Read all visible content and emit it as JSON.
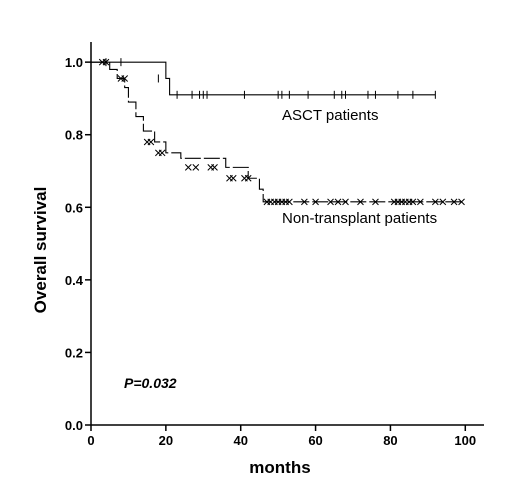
{
  "chart_data": {
    "type": "line",
    "xlabel": "months",
    "ylabel": "Overall survival",
    "xlim": [
      0,
      105
    ],
    "ylim": [
      0,
      1.05
    ],
    "x_ticks": [
      0,
      20,
      40,
      60,
      80,
      100
    ],
    "x_tick_labels": [
      "0",
      "20",
      "40",
      "60",
      "80",
      "100"
    ],
    "y_ticks": [
      0,
      0.2,
      0.4,
      0.6,
      0.8,
      1.0
    ],
    "y_tick_labels": [
      "0.0",
      "0.2",
      "0.4",
      "0.6",
      "0.8",
      "1.0"
    ],
    "grid": false,
    "annotation": "P=0.032",
    "series": [
      {
        "name": "ASCT patients",
        "line_style": "solid",
        "censor_marker": "tick",
        "step_x": [
          0,
          18,
          20,
          21,
          92
        ],
        "step_y": [
          1.0,
          1.0,
          0.955,
          0.91,
          0.91
        ],
        "censored_x": [
          4,
          8,
          18,
          23,
          27,
          29,
          30,
          31,
          41,
          50,
          51,
          53,
          58,
          65,
          67,
          68,
          74,
          76,
          82,
          86,
          92
        ],
        "censored_y": [
          1.0,
          1.0,
          0.955,
          0.91,
          0.91,
          0.91,
          0.91,
          0.91,
          0.91,
          0.91,
          0.91,
          0.91,
          0.91,
          0.91,
          0.91,
          0.91,
          0.91,
          0.91,
          0.91,
          0.91,
          0.91
        ]
      },
      {
        "name": "Non-transplant patients",
        "line_style": "dashed",
        "censor_marker": "x",
        "step_x": [
          0,
          5,
          7,
          9,
          10,
          12,
          14,
          17,
          20,
          24,
          36,
          42,
          45,
          46,
          99
        ],
        "step_y": [
          1.0,
          0.98,
          0.955,
          0.93,
          0.89,
          0.85,
          0.81,
          0.78,
          0.75,
          0.735,
          0.71,
          0.68,
          0.65,
          0.615,
          0.615
        ],
        "censored_x": [
          3,
          4,
          8,
          9,
          15,
          16,
          18,
          19,
          26,
          28,
          32,
          33,
          37,
          38,
          41,
          42,
          47,
          48,
          49,
          50,
          51,
          52,
          53,
          57,
          60,
          64,
          66,
          68,
          72,
          76,
          81,
          82,
          83,
          84,
          85,
          86,
          88,
          92,
          94,
          97,
          99
        ],
        "censored_y": [
          1.0,
          1.0,
          0.955,
          0.955,
          0.78,
          0.78,
          0.75,
          0.75,
          0.71,
          0.71,
          0.71,
          0.71,
          0.68,
          0.68,
          0.68,
          0.68,
          0.615,
          0.615,
          0.615,
          0.615,
          0.615,
          0.615,
          0.615,
          0.615,
          0.615,
          0.615,
          0.615,
          0.615,
          0.615,
          0.615,
          0.615,
          0.615,
          0.615,
          0.615,
          0.615,
          0.615,
          0.615,
          0.615,
          0.615,
          0.615,
          0.615
        ]
      }
    ]
  }
}
